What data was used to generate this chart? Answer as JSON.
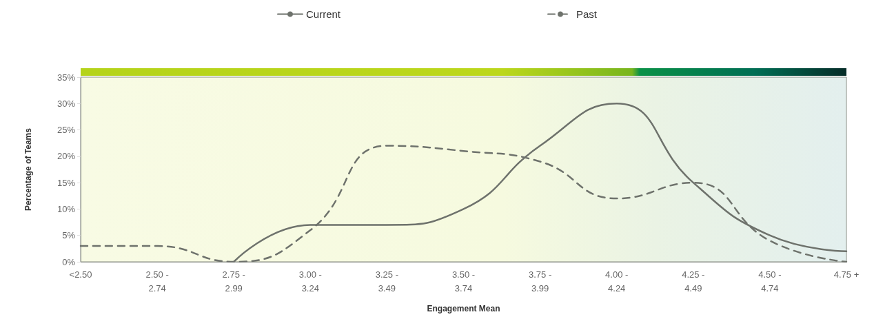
{
  "chart_data": {
    "type": "line",
    "xlabel": "Engagement Mean",
    "ylabel": "Percentage of Teams",
    "categories": [
      "<2.50",
      "2.50 -\n2.74",
      "2.75 -\n2.99",
      "3.00 -\n3.24",
      "3.25 -\n3.49",
      "3.50 -\n3.74",
      "3.75 -\n3.99",
      "4.00 -\n4.24",
      "4.25 -\n4.49",
      "4.50 -\n4.74",
      "4.75 +"
    ],
    "series": [
      {
        "name": "Current",
        "color": "#6e726c",
        "line_style": "solid",
        "values": [
          null,
          null,
          0,
          7,
          7,
          10,
          22,
          30,
          15,
          5,
          2
        ]
      },
      {
        "name": "Past",
        "color": "#6e726c",
        "line_style": "dashed",
        "values": [
          3,
          3,
          0,
          6,
          22,
          21,
          19,
          12,
          15,
          4,
          0
        ]
      }
    ],
    "ylim": [
      0,
      35
    ],
    "yticks": [
      {
        "value": 0,
        "label": "0%"
      },
      {
        "value": 5,
        "label": "5%"
      },
      {
        "value": 10,
        "label": "10%"
      },
      {
        "value": 15,
        "label": "15%"
      },
      {
        "value": 20,
        "label": "20%"
      },
      {
        "value": 25,
        "label": "25%"
      },
      {
        "value": 30,
        "label": "30%"
      },
      {
        "value": 35,
        "label": "35%"
      }
    ],
    "grid": false,
    "legend": "top",
    "marker": "none"
  }
}
